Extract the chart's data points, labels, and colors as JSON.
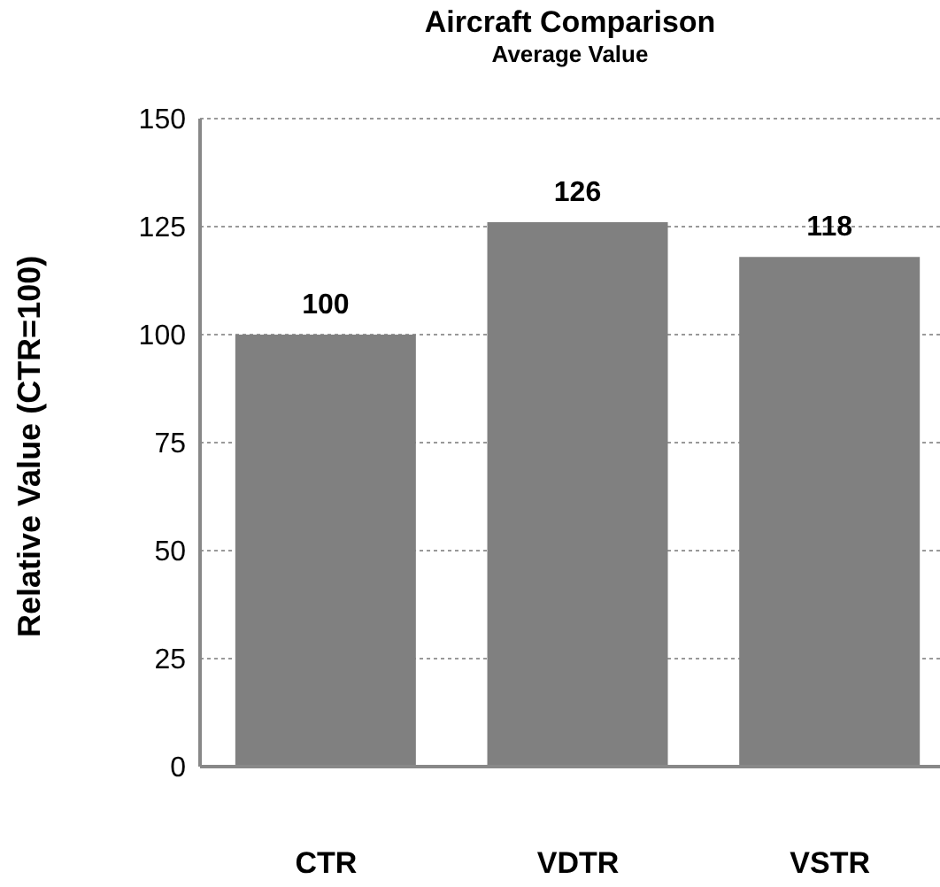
{
  "chart_data": {
    "type": "bar",
    "title": "Aircraft Comparison",
    "subtitle": "Average Value",
    "ylabel": "Relative Value (CTR=100)",
    "categories": [
      "CTR",
      "VDTR",
      "VSTR"
    ],
    "values": [
      100,
      126,
      118
    ],
    "color": "#808080",
    "ylim": [
      0,
      150
    ],
    "yticks": [
      0,
      25,
      50,
      75,
      100,
      125,
      150
    ],
    "grid": "y",
    "data_labels": true
  }
}
